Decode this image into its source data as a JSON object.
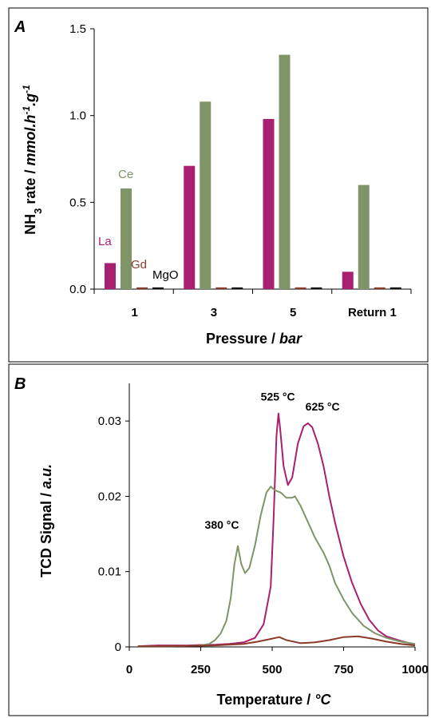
{
  "chart_data": [
    {
      "panel": "A",
      "type": "bar",
      "xlabel": "Pressure",
      "xlabel_unit": "bar",
      "ylabel_pre": "NH",
      "ylabel_sub": "3",
      "ylabel_mid": " rate / ",
      "ylabel_unit_a": "mmol.h",
      "ylabel_unit_sup1": "-1",
      "ylabel_unit_b": ".g",
      "ylabel_unit_sup2": "-1",
      "ylim": [
        0,
        1.5
      ],
      "yticks": [
        "0.0",
        "0.5",
        "1.0",
        "1.5"
      ],
      "categories": [
        "1",
        "3",
        "5",
        "Return 1"
      ],
      "series": [
        {
          "name": "La",
          "color": "#a8206f",
          "values": [
            0.15,
            0.71,
            0.98,
            0.1
          ]
        },
        {
          "name": "Ce",
          "color": "#7f9467",
          "values": [
            0.58,
            1.08,
            1.35,
            0.6
          ]
        },
        {
          "name": "Gd",
          "color": "#8b3a2a",
          "values": [
            0.01,
            0.01,
            0.01,
            0.01
          ]
        },
        {
          "name": "MgO",
          "color": "#111111",
          "values": [
            0.01,
            0.01,
            0.01,
            0.01
          ]
        }
      ]
    },
    {
      "panel": "B",
      "type": "line",
      "xlabel": "Temperature",
      "xlabel_unit": "°C",
      "ylabel": "TCD Signal",
      "ylabel_unit": "a.u.",
      "xlim": [
        0,
        1000
      ],
      "ylim": [
        0,
        0.035
      ],
      "xticks": [
        "0",
        "250",
        "500",
        "750",
        "1000"
      ],
      "yticks": [
        "0",
        "0.01",
        "0.02",
        "0.03"
      ],
      "annotations": [
        {
          "text": "380 °C",
          "x": 380,
          "y": 0.0136
        },
        {
          "text": "525 °C",
          "x": 520,
          "y": 0.031
        },
        {
          "text": "625 °C",
          "x": 615,
          "y": 0.0297
        }
      ],
      "series": [
        {
          "color": "#a8206f",
          "points": [
            [
              30,
              0.0001
            ],
            [
              100,
              0.0002
            ],
            [
              200,
              0.0002
            ],
            [
              300,
              0.0003
            ],
            [
              350,
              0.0004
            ],
            [
              400,
              0.0006
            ],
            [
              440,
              0.0012
            ],
            [
              470,
              0.003
            ],
            [
              495,
              0.008
            ],
            [
              505,
              0.017
            ],
            [
              515,
              0.028
            ],
            [
              522,
              0.031
            ],
            [
              528,
              0.029
            ],
            [
              540,
              0.024
            ],
            [
              555,
              0.0215
            ],
            [
              570,
              0.0225
            ],
            [
              590,
              0.027
            ],
            [
              610,
              0.0293
            ],
            [
              625,
              0.0297
            ],
            [
              640,
              0.0292
            ],
            [
              660,
              0.027
            ],
            [
              680,
              0.024
            ],
            [
              700,
              0.02
            ],
            [
              720,
              0.0165
            ],
            [
              750,
              0.012
            ],
            [
              780,
              0.0085
            ],
            [
              810,
              0.0057
            ],
            [
              840,
              0.0036
            ],
            [
              870,
              0.0022
            ],
            [
              900,
              0.0014
            ],
            [
              950,
              0.0008
            ],
            [
              1000,
              0.0003
            ]
          ]
        },
        {
          "color": "#7f9467",
          "points": [
            [
              30,
              0.0001
            ],
            [
              150,
              0.0001
            ],
            [
              250,
              0.0002
            ],
            [
              280,
              0.0004
            ],
            [
              300,
              0.0009
            ],
            [
              320,
              0.0018
            ],
            [
              340,
              0.0035
            ],
            [
              355,
              0.0065
            ],
            [
              368,
              0.011
            ],
            [
              380,
              0.0134
            ],
            [
              392,
              0.011
            ],
            [
              405,
              0.0098
            ],
            [
              420,
              0.0105
            ],
            [
              440,
              0.0135
            ],
            [
              460,
              0.0175
            ],
            [
              480,
              0.0205
            ],
            [
              495,
              0.0213
            ],
            [
              510,
              0.0208
            ],
            [
              530,
              0.0205
            ],
            [
              550,
              0.0198
            ],
            [
              570,
              0.0198
            ],
            [
              580,
              0.02
            ],
            [
              600,
              0.0187
            ],
            [
              620,
              0.017
            ],
            [
              650,
              0.0145
            ],
            [
              680,
              0.0125
            ],
            [
              700,
              0.0108
            ],
            [
              720,
              0.0085
            ],
            [
              750,
              0.0063
            ],
            [
              780,
              0.0045
            ],
            [
              820,
              0.0028
            ],
            [
              860,
              0.0018
            ],
            [
              900,
              0.0012
            ],
            [
              950,
              0.0007
            ],
            [
              1000,
              0.0004
            ]
          ]
        },
        {
          "color": "#8b3a2a",
          "points": [
            [
              30,
              0.0001
            ],
            [
              150,
              0.0001
            ],
            [
              300,
              0.0002
            ],
            [
              400,
              0.0004
            ],
            [
              450,
              0.0007
            ],
            [
              500,
              0.0011
            ],
            [
              525,
              0.0013
            ],
            [
              550,
              0.0009
            ],
            [
              600,
              0.0005
            ],
            [
              650,
              0.0006
            ],
            [
              700,
              0.0009
            ],
            [
              750,
              0.0013
            ],
            [
              800,
              0.0014
            ],
            [
              850,
              0.0011
            ],
            [
              900,
              0.0007
            ],
            [
              950,
              0.0004
            ],
            [
              1000,
              0.0002
            ]
          ]
        }
      ]
    }
  ]
}
